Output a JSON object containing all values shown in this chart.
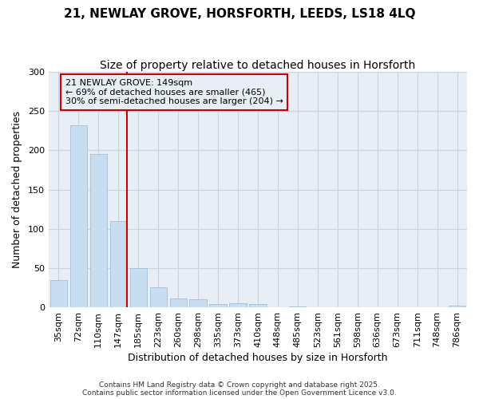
{
  "title": "21, NEWLAY GROVE, HORSFORTH, LEEDS, LS18 4LQ",
  "subtitle": "Size of property relative to detached houses in Horsforth",
  "xlabel": "Distribution of detached houses by size in Horsforth",
  "ylabel": "Number of detached properties",
  "categories": [
    "35sqm",
    "72sqm",
    "110sqm",
    "147sqm",
    "185sqm",
    "223sqm",
    "260sqm",
    "298sqm",
    "335sqm",
    "373sqm",
    "410sqm",
    "448sqm",
    "485sqm",
    "523sqm",
    "561sqm",
    "598sqm",
    "636sqm",
    "673sqm",
    "711sqm",
    "748sqm",
    "786sqm"
  ],
  "values": [
    35,
    232,
    195,
    110,
    50,
    26,
    11,
    10,
    4,
    5,
    4,
    0,
    1,
    0,
    0,
    0,
    0,
    0,
    0,
    0,
    2
  ],
  "bar_color": "#c8ddf0",
  "bar_edgecolor": "#9ab8d8",
  "grid_color": "#c8d4e0",
  "bg_color": "#ffffff",
  "plot_bg_color": "#e8eef5",
  "vline_x_index": 3,
  "vline_color": "#cc0000",
  "annotation_text": "21 NEWLAY GROVE: 149sqm\n← 69% of detached houses are smaller (465)\n30% of semi-detached houses are larger (204) →",
  "annotation_box_color": "#cc0000",
  "ylim": [
    0,
    300
  ],
  "yticks": [
    0,
    50,
    100,
    150,
    200,
    250,
    300
  ],
  "title_fontsize": 11,
  "subtitle_fontsize": 10,
  "axis_label_fontsize": 9,
  "tick_fontsize": 8,
  "annot_fontsize": 8,
  "footnote_fontsize": 6.5,
  "footnote": "Contains HM Land Registry data © Crown copyright and database right 2025.\nContains public sector information licensed under the Open Government Licence v3.0."
}
